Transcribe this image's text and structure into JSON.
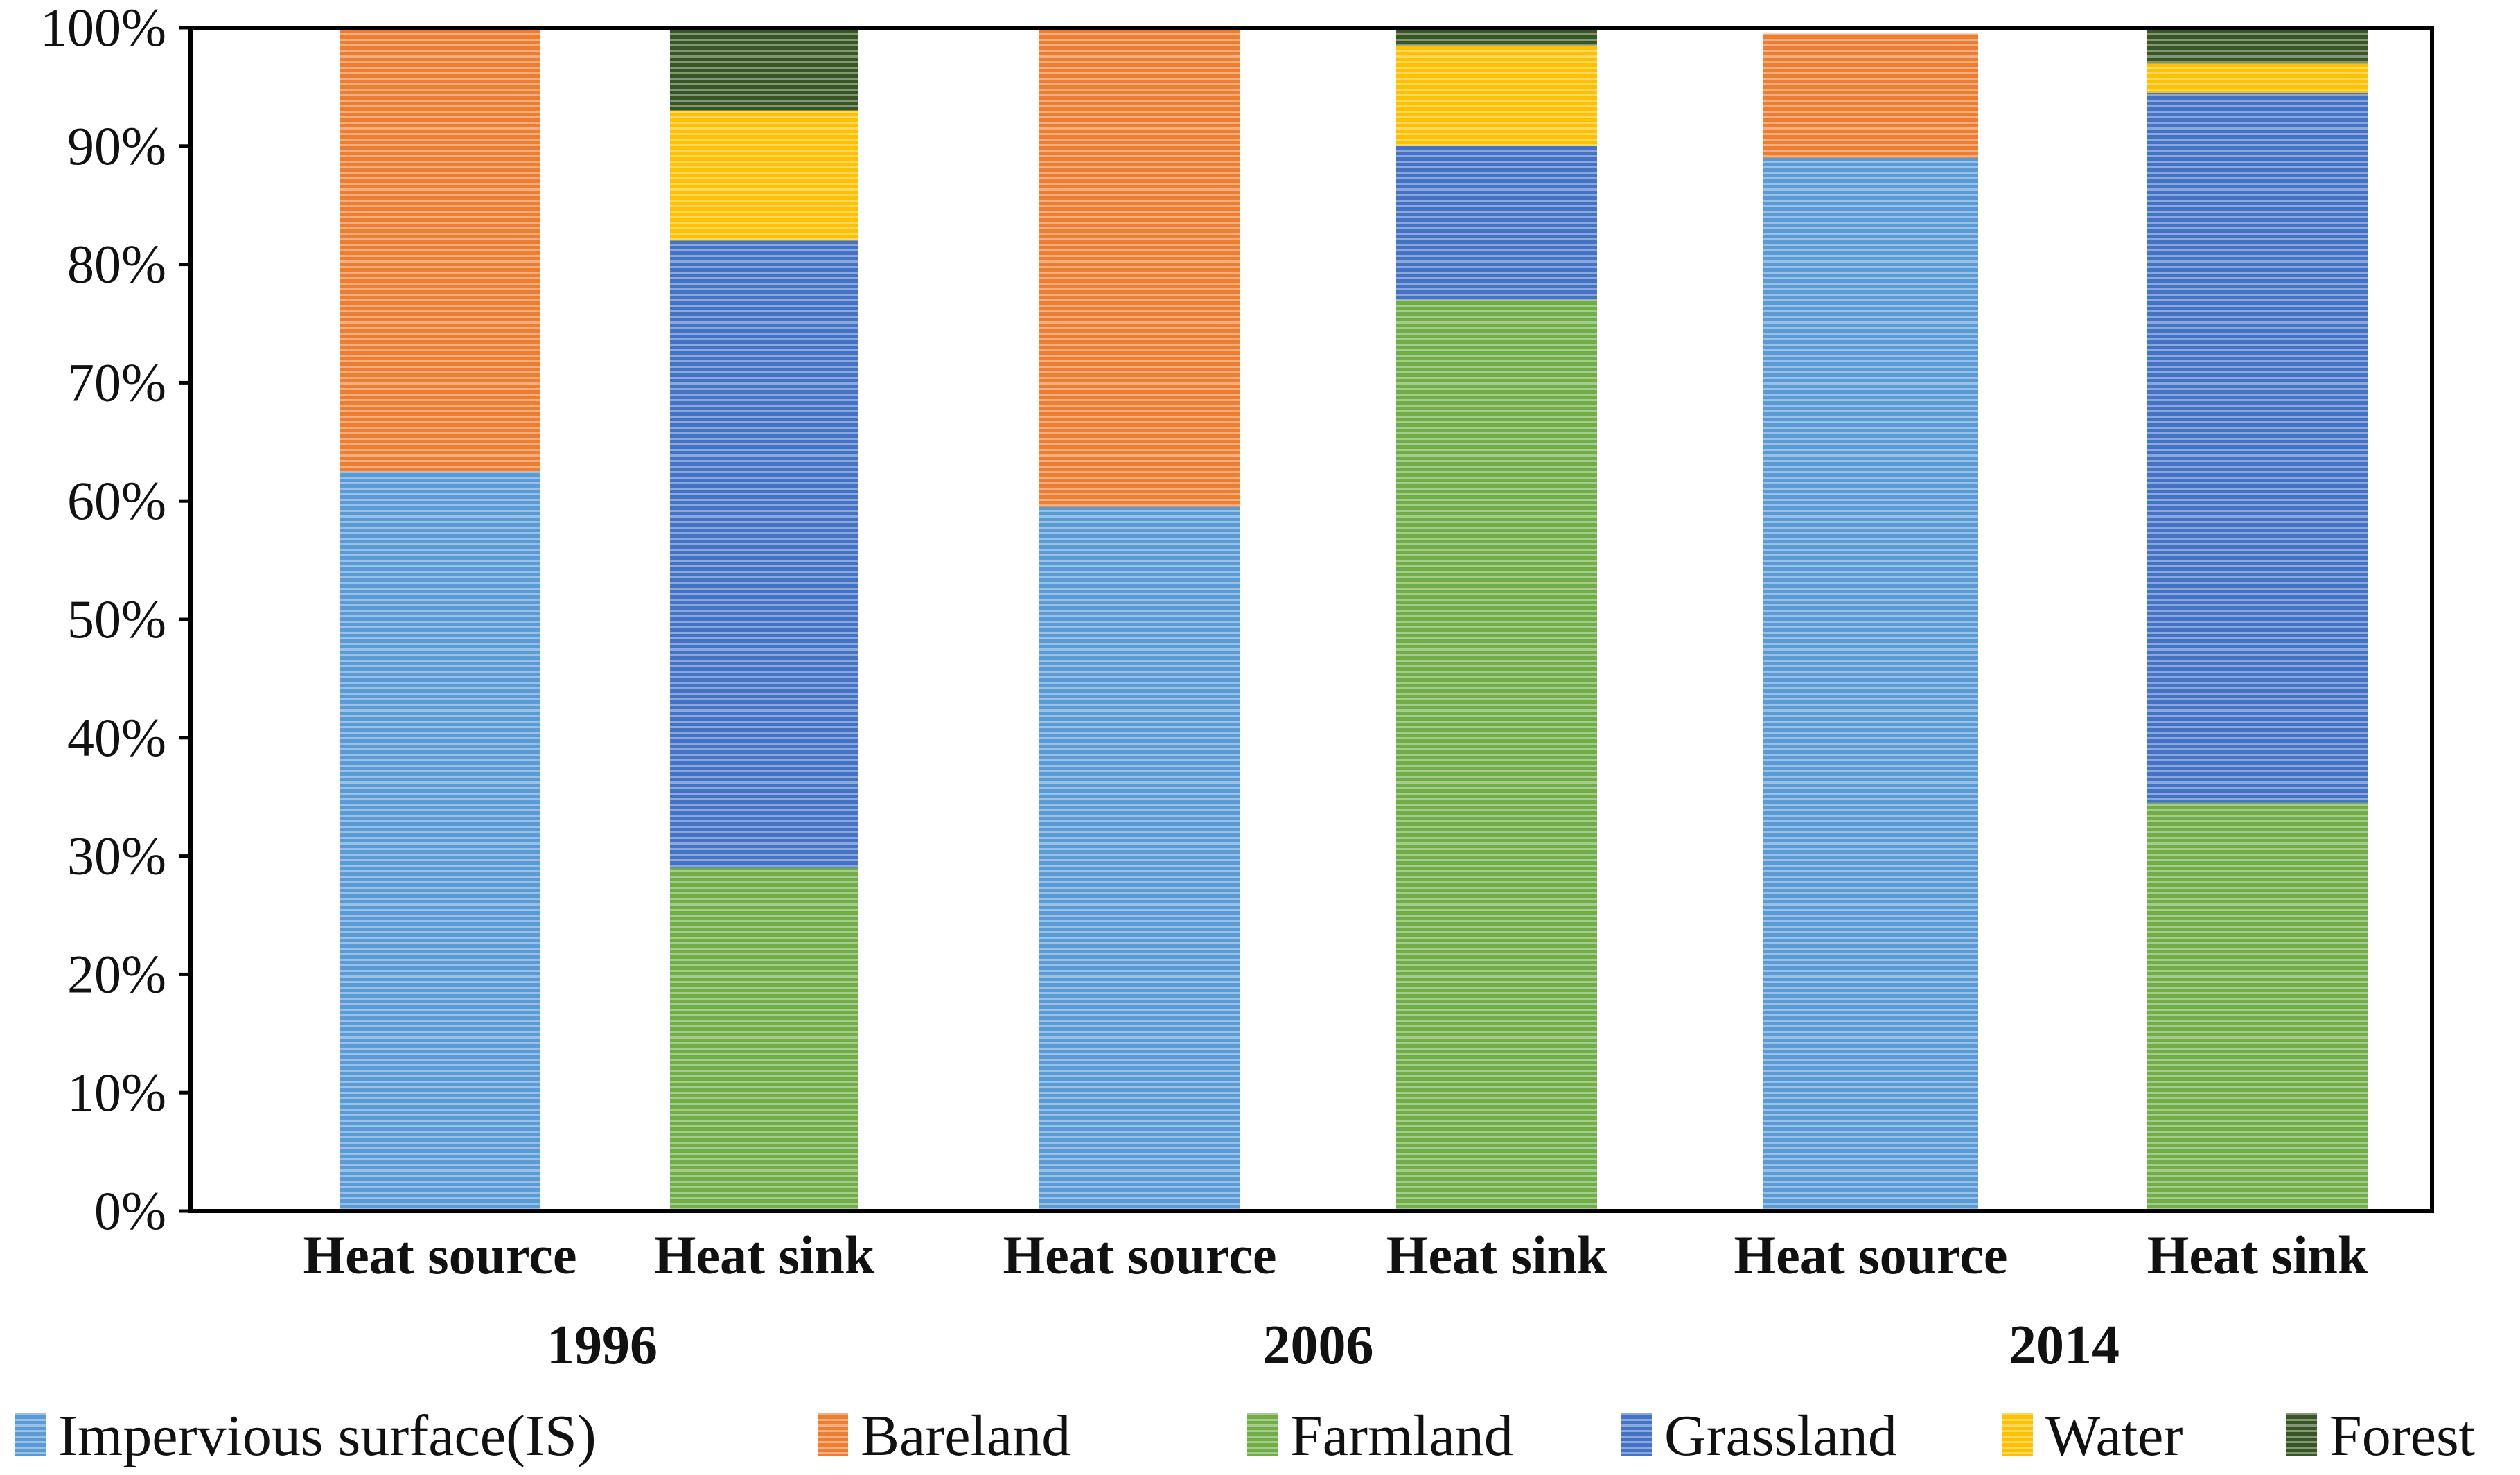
{
  "chart_data": {
    "type": "bar",
    "stacked": true,
    "percent": true,
    "title": "",
    "xlabel": "",
    "ylabel": "",
    "ylim": [
      0,
      100
    ],
    "yticks": [
      "0%",
      "10%",
      "20%",
      "30%",
      "40%",
      "50%",
      "60%",
      "70%",
      "80%",
      "90%",
      "100%"
    ],
    "groups": [
      {
        "label": "1996",
        "bars": [
          {
            "label": "Heat source",
            "values": [
              62.5,
              37.5,
              0,
              0,
              0,
              0
            ]
          },
          {
            "label": "Heat sink",
            "values": [
              0,
              0,
              29,
              53,
              11,
              7
            ]
          }
        ]
      },
      {
        "label": "2006",
        "bars": [
          {
            "label": "Heat source",
            "values": [
              59.5,
              40.5,
              0,
              0,
              0,
              0
            ]
          },
          {
            "label": "Heat sink",
            "values": [
              0,
              0,
              77,
              13,
              8.5,
              1.5
            ]
          }
        ]
      },
      {
        "label": "2014",
        "bars": [
          {
            "label": "Heat source",
            "values": [
              89,
              10.5,
              0,
              0,
              0,
              0
            ]
          },
          {
            "label": "Heat sink",
            "values": [
              0,
              0,
              34.5,
              60,
              2.5,
              3
            ]
          }
        ]
      }
    ],
    "series": [
      {
        "name": "Impervious surface(IS)",
        "color": "#5b9bd5"
      },
      {
        "name": "Bareland",
        "color": "#ed7d31"
      },
      {
        "name": "Farmland",
        "color": "#70ad47"
      },
      {
        "name": "Grassland",
        "color": "#4472c4"
      },
      {
        "name": "Water",
        "color": "#ffc000"
      },
      {
        "name": "Forest",
        "color": "#375623"
      }
    ],
    "legend_position": "bottom"
  }
}
